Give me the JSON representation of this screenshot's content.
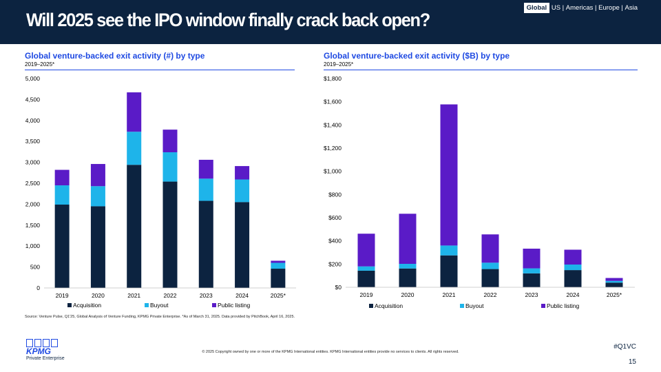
{
  "header": {
    "title": "Will 2025 see the IPO window finally crack back open?",
    "regions": [
      "Global",
      "US",
      "Americas",
      "Europe",
      "Asia"
    ],
    "active_region": "Global"
  },
  "colors": {
    "header_bg": "#0c2340",
    "accent_blue": "#1e49e2",
    "acquisition": "#0c2340",
    "buyout": "#1eb4ea",
    "public_listing": "#5a1bc7"
  },
  "chart_data": [
    {
      "type": "bar",
      "stacked": true,
      "title": "Global venture-backed exit activity (#) by type",
      "subtitle": "2019–2025*",
      "categories": [
        "2019",
        "2020",
        "2021",
        "2022",
        "2023",
        "2024",
        "2025*"
      ],
      "series": [
        {
          "name": "Acquisition",
          "values": [
            1990,
            1950,
            2940,
            2540,
            2080,
            2050,
            460
          ]
        },
        {
          "name": "Buyout",
          "values": [
            460,
            480,
            790,
            700,
            530,
            540,
            140
          ]
        },
        {
          "name": "Public listing",
          "values": [
            370,
            530,
            940,
            540,
            450,
            320,
            50
          ]
        }
      ],
      "ylim": [
        0,
        5000
      ],
      "yticks": [
        0,
        500,
        1000,
        1500,
        2000,
        2500,
        3000,
        3500,
        4000,
        4500,
        5000
      ],
      "ytick_labels": [
        "0",
        "500",
        "1,000",
        "1,500",
        "2,000",
        "2,500",
        "3,000",
        "3,500",
        "4,000",
        "4,500",
        "5,000"
      ],
      "legend": "bottom"
    },
    {
      "type": "bar",
      "stacked": true,
      "title": "Global venture-backed exit activity ($B) by type",
      "subtitle": "2019–2025*",
      "categories": [
        "2019",
        "2020",
        "2021",
        "2022",
        "2023",
        "2024",
        "2025*"
      ],
      "series": [
        {
          "name": "Acquisition",
          "values": [
            143,
            162,
            275,
            157,
            120,
            148,
            40
          ]
        },
        {
          "name": "Buyout",
          "values": [
            37,
            40,
            85,
            55,
            43,
            48,
            15
          ]
        },
        {
          "name": "Public listing",
          "values": [
            282,
            432,
            1217,
            244,
            170,
            128,
            25
          ]
        }
      ],
      "ylim": [
        0,
        1800
      ],
      "yticks": [
        0,
        200,
        400,
        600,
        800,
        1000,
        1200,
        1400,
        1600,
        1800
      ],
      "ytick_labels": [
        "$0",
        "$200",
        "$400",
        "$600",
        "$800",
        "$1,000",
        "$1,200",
        "$1,400",
        "$1,600",
        "$1,800"
      ],
      "legend": "bottom"
    }
  ],
  "footer": {
    "source": "Source: Venture Pulse, Q1'25, Global Analysis of Venture Funding, KPMG Private Enterprise. *As of March 31, 2025. Data provided by PitchBook, April 16, 2025.",
    "copyright": "© 2025 Copyright owned by one or more of the KPMG International entities. KPMG International entities provide no services to clients. All rights reserved.",
    "hashtag": "#Q1VC",
    "page_number": "15",
    "logo_text": "KPMG",
    "logo_sub": "Private Enterprise"
  }
}
